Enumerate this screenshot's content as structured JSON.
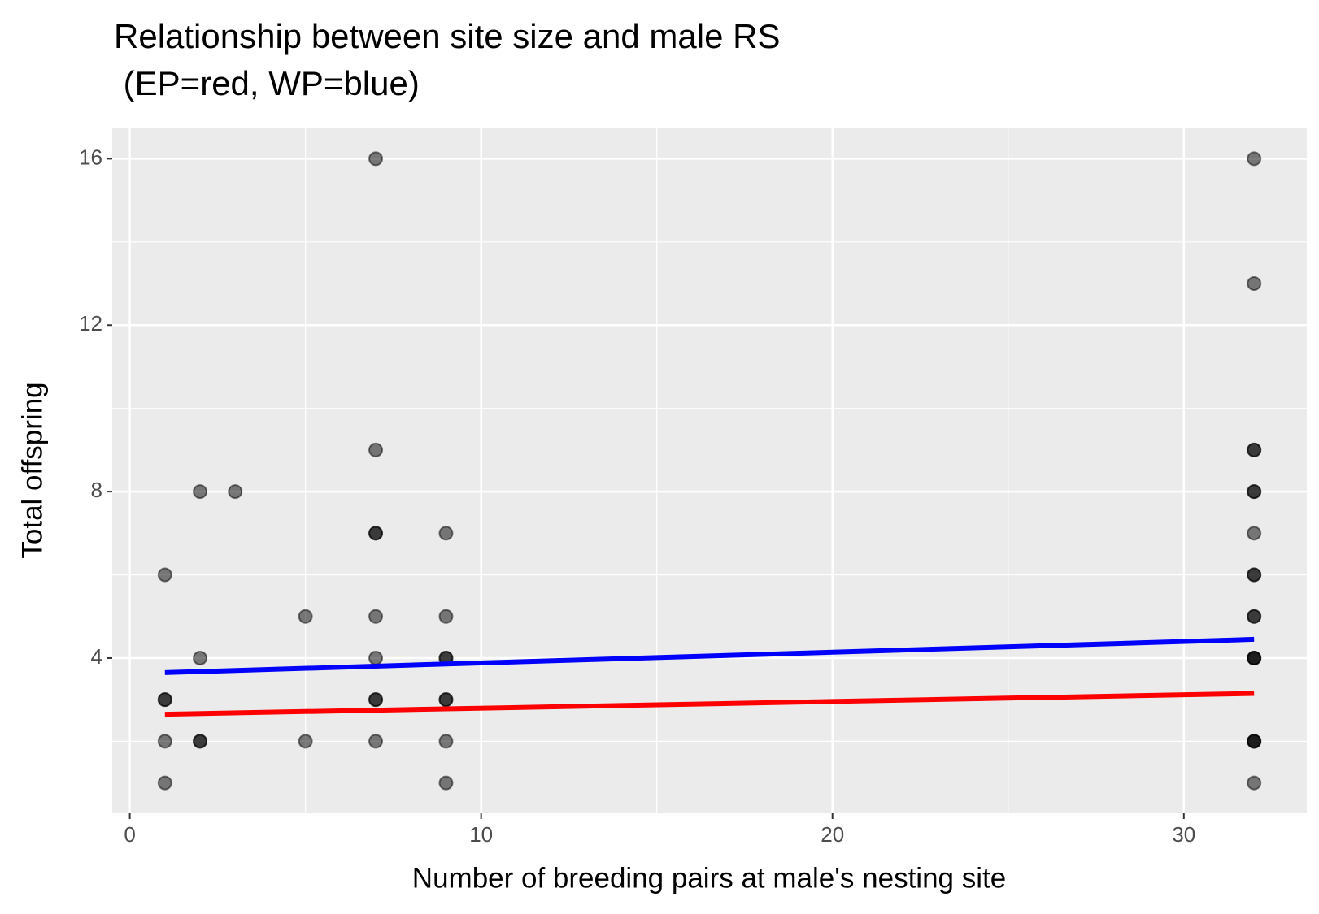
{
  "chart_data": {
    "type": "scatter",
    "title": "Relationship between site size and male RS",
    "subtitle": " (EP=red, WP=blue)",
    "x_label": "Number of breeding pairs at male's nesting site",
    "y_label": "Total offspring",
    "xlim": [
      -0.5,
      33.5
    ],
    "ylim": [
      0.27,
      16.73
    ],
    "xticks": [
      0,
      10,
      20,
      30
    ],
    "yticks": [
      4,
      8,
      12,
      16
    ],
    "grid": true,
    "point_color": "#000000",
    "point_alpha": 0.5,
    "x": [
      1,
      1,
      1,
      1,
      1,
      2,
      2,
      2,
      2,
      3,
      5,
      5,
      7,
      7,
      7,
      7,
      7,
      7,
      7,
      7,
      7,
      9,
      9,
      9,
      9,
      9,
      9,
      9,
      9,
      32,
      32,
      32,
      32,
      32,
      32,
      32,
      32,
      32,
      32,
      32,
      32,
      32,
      32,
      32,
      32,
      32,
      32
    ],
    "values": [
      6,
      3,
      3,
      2,
      1,
      8,
      4,
      2,
      2,
      8,
      5,
      2,
      16,
      9,
      7,
      7,
      5,
      4,
      3,
      3,
      2,
      1,
      7,
      5,
      4,
      4,
      3,
      3,
      2,
      2,
      16,
      13,
      9,
      9,
      8,
      8,
      7,
      6,
      6,
      5,
      5,
      4,
      4,
      4,
      2,
      2,
      1
    ],
    "lines": [
      {
        "color": "#0000ff",
        "x": [
          1,
          32
        ],
        "values": [
          3.65,
          4.45
        ]
      },
      {
        "color": "#ff0000",
        "x": [
          1,
          32
        ],
        "values": [
          2.65,
          3.15
        ]
      }
    ]
  }
}
